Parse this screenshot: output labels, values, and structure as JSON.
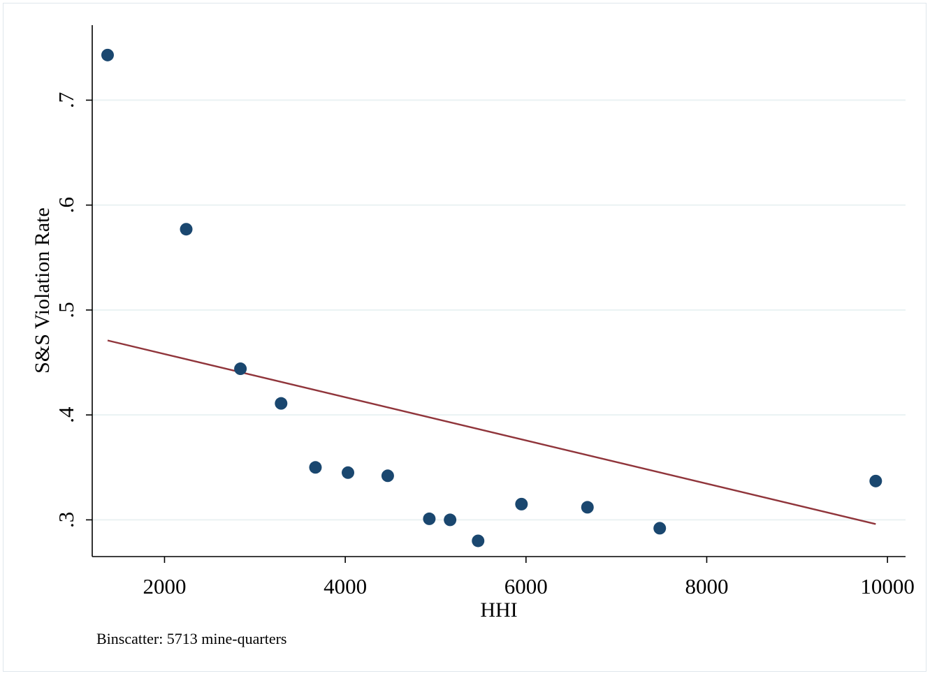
{
  "chart_data": {
    "type": "scatter",
    "xlabel": "HHI",
    "ylabel": "S&S Violation Rate",
    "note": "Binscatter: 5713 mine-quarters",
    "xlim": [
      1200,
      10200
    ],
    "ylim": [
      0.265,
      0.7715
    ],
    "x_ticks": [
      {
        "value": 2000,
        "label": "2000"
      },
      {
        "value": 4000,
        "label": "4000"
      },
      {
        "value": 6000,
        "label": "6000"
      },
      {
        "value": 8000,
        "label": "8000"
      },
      {
        "value": 10000,
        "label": "10000"
      }
    ],
    "y_ticks": [
      {
        "value": 0.3,
        "label": ".3"
      },
      {
        "value": 0.4,
        "label": ".4"
      },
      {
        "value": 0.5,
        "label": ".5"
      },
      {
        "value": 0.6,
        "label": ".6"
      },
      {
        "value": 0.7,
        "label": ".7"
      }
    ],
    "grid": "horizontal",
    "points": [
      {
        "x": 1370,
        "y": 0.743
      },
      {
        "x": 2240,
        "y": 0.577
      },
      {
        "x": 2840,
        "y": 0.444
      },
      {
        "x": 3290,
        "y": 0.411
      },
      {
        "x": 3670,
        "y": 0.35
      },
      {
        "x": 4030,
        "y": 0.345
      },
      {
        "x": 4470,
        "y": 0.342
      },
      {
        "x": 4930,
        "y": 0.301
      },
      {
        "x": 5160,
        "y": 0.3
      },
      {
        "x": 5470,
        "y": 0.28
      },
      {
        "x": 5950,
        "y": 0.315
      },
      {
        "x": 6680,
        "y": 0.312
      },
      {
        "x": 7480,
        "y": 0.292
      },
      {
        "x": 9870,
        "y": 0.337
      }
    ],
    "fit_line": {
      "x": [
        1370,
        9870
      ],
      "y": [
        0.471,
        0.296
      ]
    },
    "colors": {
      "points": "#1a476f",
      "fit_line": "#90353b",
      "grid": "#eaf2f3",
      "axis": "#000000"
    }
  }
}
